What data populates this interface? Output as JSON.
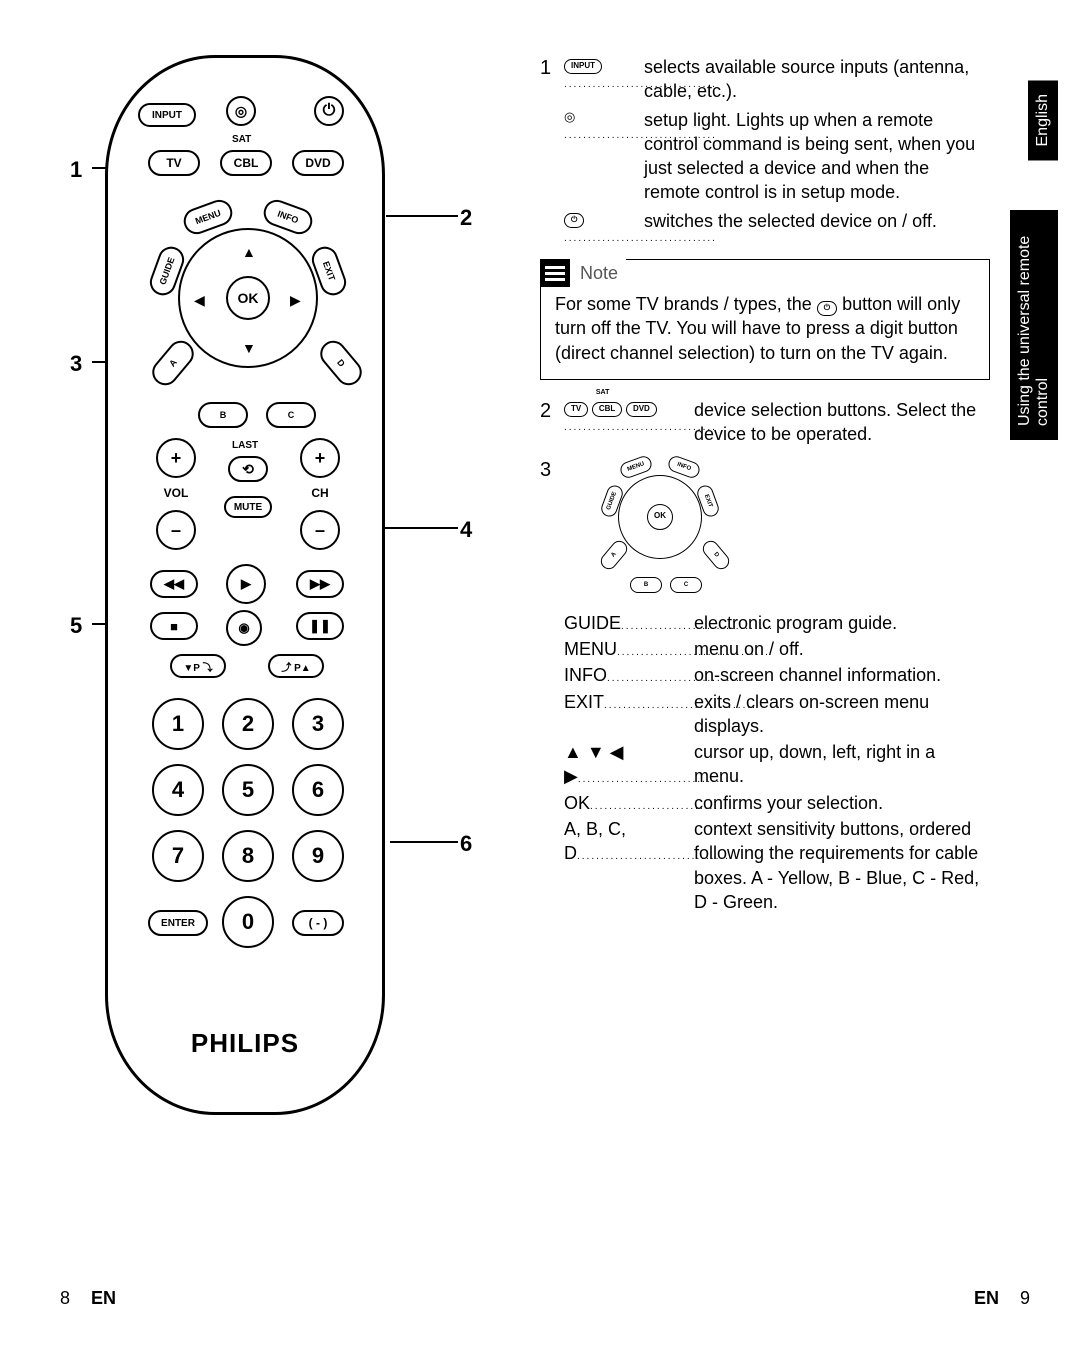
{
  "brand": "PHILIPS",
  "remote": {
    "input": "INPUT",
    "sat_label": "SAT",
    "tv": "TV",
    "cbl": "CBL",
    "dvd": "DVD",
    "menu": "MENU",
    "info": "INFO",
    "guide": "GUIDE",
    "exit": "EXIT",
    "ok": "OK",
    "a": "A",
    "b": "B",
    "c": "C",
    "d": "D",
    "vol": "VOL",
    "ch": "CH",
    "last_label": "LAST",
    "last": "⟲",
    "mute": "MUTE",
    "rew": "◀◀",
    "play": "▶",
    "ff": "▶▶",
    "stop": "■",
    "rec": "◉",
    "pause": "❚❚",
    "pdn": "▼P ⤵",
    "pup": "⤴ P▲",
    "k1": "1",
    "k2": "2",
    "k3": "3",
    "k4": "4",
    "k5": "5",
    "k6": "6",
    "k7": "7",
    "k8": "8",
    "k9": "9",
    "k0": "0",
    "enter": "ENTER",
    "dash": "( - )"
  },
  "callouts": {
    "1": "1",
    "2": "2",
    "3": "3",
    "4": "4",
    "5": "5",
    "6": "6"
  },
  "section1": {
    "n": "1",
    "input_label": "INPUT",
    "input_desc": "selects available source inputs (antenna, cable, etc.).",
    "led_desc": "setup light. Lights up when a remote control command is being sent, when you just selected a device and when the remote control is in setup mode.",
    "power_desc": "switches the selected device on / off."
  },
  "note": {
    "title": "Note",
    "body_before": "For some TV brands / types, the ",
    "body_after": " button will only turn off the TV.  You will have to press a digit button (direct channel selection) to turn on the TV again."
  },
  "section2": {
    "n": "2",
    "tv": "TV",
    "cbl": "CBL",
    "dvd": "DVD",
    "sat": "SAT",
    "desc": "device selection buttons. Select the device to be operated."
  },
  "section3": {
    "n": "3",
    "rows": [
      {
        "term": "GUIDE",
        "def": "electronic program guide."
      },
      {
        "term": "MENU",
        "def": "menu on / off."
      },
      {
        "term": "INFO",
        "def": "on-screen channel information."
      },
      {
        "term": "EXIT",
        "def": "exits / clears on-screen menu displays."
      },
      {
        "term": "▲ ▼ ◀ ▶",
        "def": "cursor up, down, left, right in a menu."
      },
      {
        "term": "OK",
        "def": "confirms your selection."
      },
      {
        "term": "A, B, C, D",
        "def": "context sensitivity buttons, ordered following the requirements for cable boxes. A - Yellow, B - Blue, C - Red, D - Green."
      }
    ]
  },
  "tabs": {
    "lang": "English",
    "chapter": "Using the universal remote control"
  },
  "footer": {
    "left_page": "8",
    "left_lang": "EN",
    "right_lang": "EN",
    "right_page": "9"
  }
}
